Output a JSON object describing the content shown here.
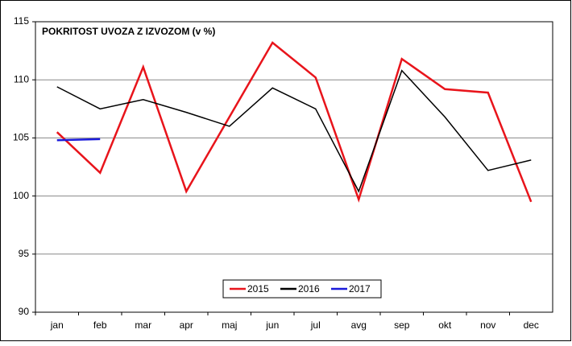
{
  "chart_data": {
    "type": "line",
    "title": "POKRITOST  UVOZA  Z  IZVOZOM  (v %)",
    "categories": [
      "jan",
      "feb",
      "mar",
      "apr",
      "maj",
      "jun",
      "jul",
      "avg",
      "sep",
      "okt",
      "nov",
      "dec"
    ],
    "series": [
      {
        "name": "2015",
        "color": "#e8141b",
        "values": [
          105.5,
          102.0,
          111.1,
          100.4,
          106.8,
          113.2,
          110.2,
          99.7,
          111.8,
          109.2,
          108.9,
          99.5
        ]
      },
      {
        "name": "2016",
        "color": "#000000",
        "values": [
          109.4,
          107.5,
          108.3,
          107.2,
          106.0,
          109.3,
          107.5,
          100.4,
          110.8,
          106.8,
          102.2,
          103.1
        ]
      },
      {
        "name": "2017",
        "color": "#1a1adb",
        "values": [
          104.8,
          104.9,
          null,
          null,
          null,
          null,
          null,
          null,
          null,
          null,
          null,
          null
        ]
      }
    ],
    "ylim": [
      90,
      115
    ],
    "yticks": [
      90,
      95,
      100,
      105,
      110,
      115
    ],
    "grid": true,
    "legend": "bottom"
  }
}
